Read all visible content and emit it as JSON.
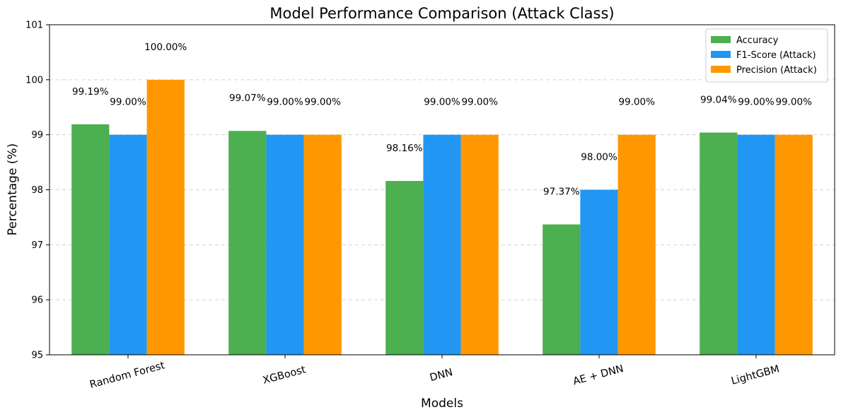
{
  "chart_data": {
    "type": "bar",
    "title": "Model Performance Comparison (Attack Class)",
    "xlabel": "Models",
    "ylabel": "Percentage (%)",
    "categories": [
      "Random Forest",
      "XGBoost",
      "DNN",
      "AE + DNN",
      "LightGBM"
    ],
    "series": [
      {
        "name": "Accuracy",
        "color": "#4caf50",
        "values": [
          99.19,
          99.07,
          98.16,
          97.37,
          99.04
        ],
        "labels": [
          "99.19%",
          "99.07%",
          "98.16%",
          "97.37%",
          "99.04%"
        ]
      },
      {
        "name": "F1-Score (Attack)",
        "color": "#2196f3",
        "values": [
          99.0,
          99.0,
          99.0,
          98.0,
          99.0
        ],
        "labels": [
          "99.00%",
          "99.00%",
          "99.00%",
          "98.00%",
          "99.00%"
        ]
      },
      {
        "name": "Precision (Attack)",
        "color": "#ff9800",
        "values": [
          100.0,
          99.0,
          99.0,
          99.0,
          99.0
        ],
        "labels": [
          "100.00%",
          "99.00%",
          "99.00%",
          "99.00%",
          "99.00%"
        ]
      }
    ],
    "ylim": [
      95,
      101
    ],
    "yticks": [
      "95",
      "96",
      "97",
      "98",
      "99",
      "100",
      "101"
    ],
    "grid": "y-dashed",
    "legend_position": "top-right",
    "xtick_rotation_deg": 15
  }
}
